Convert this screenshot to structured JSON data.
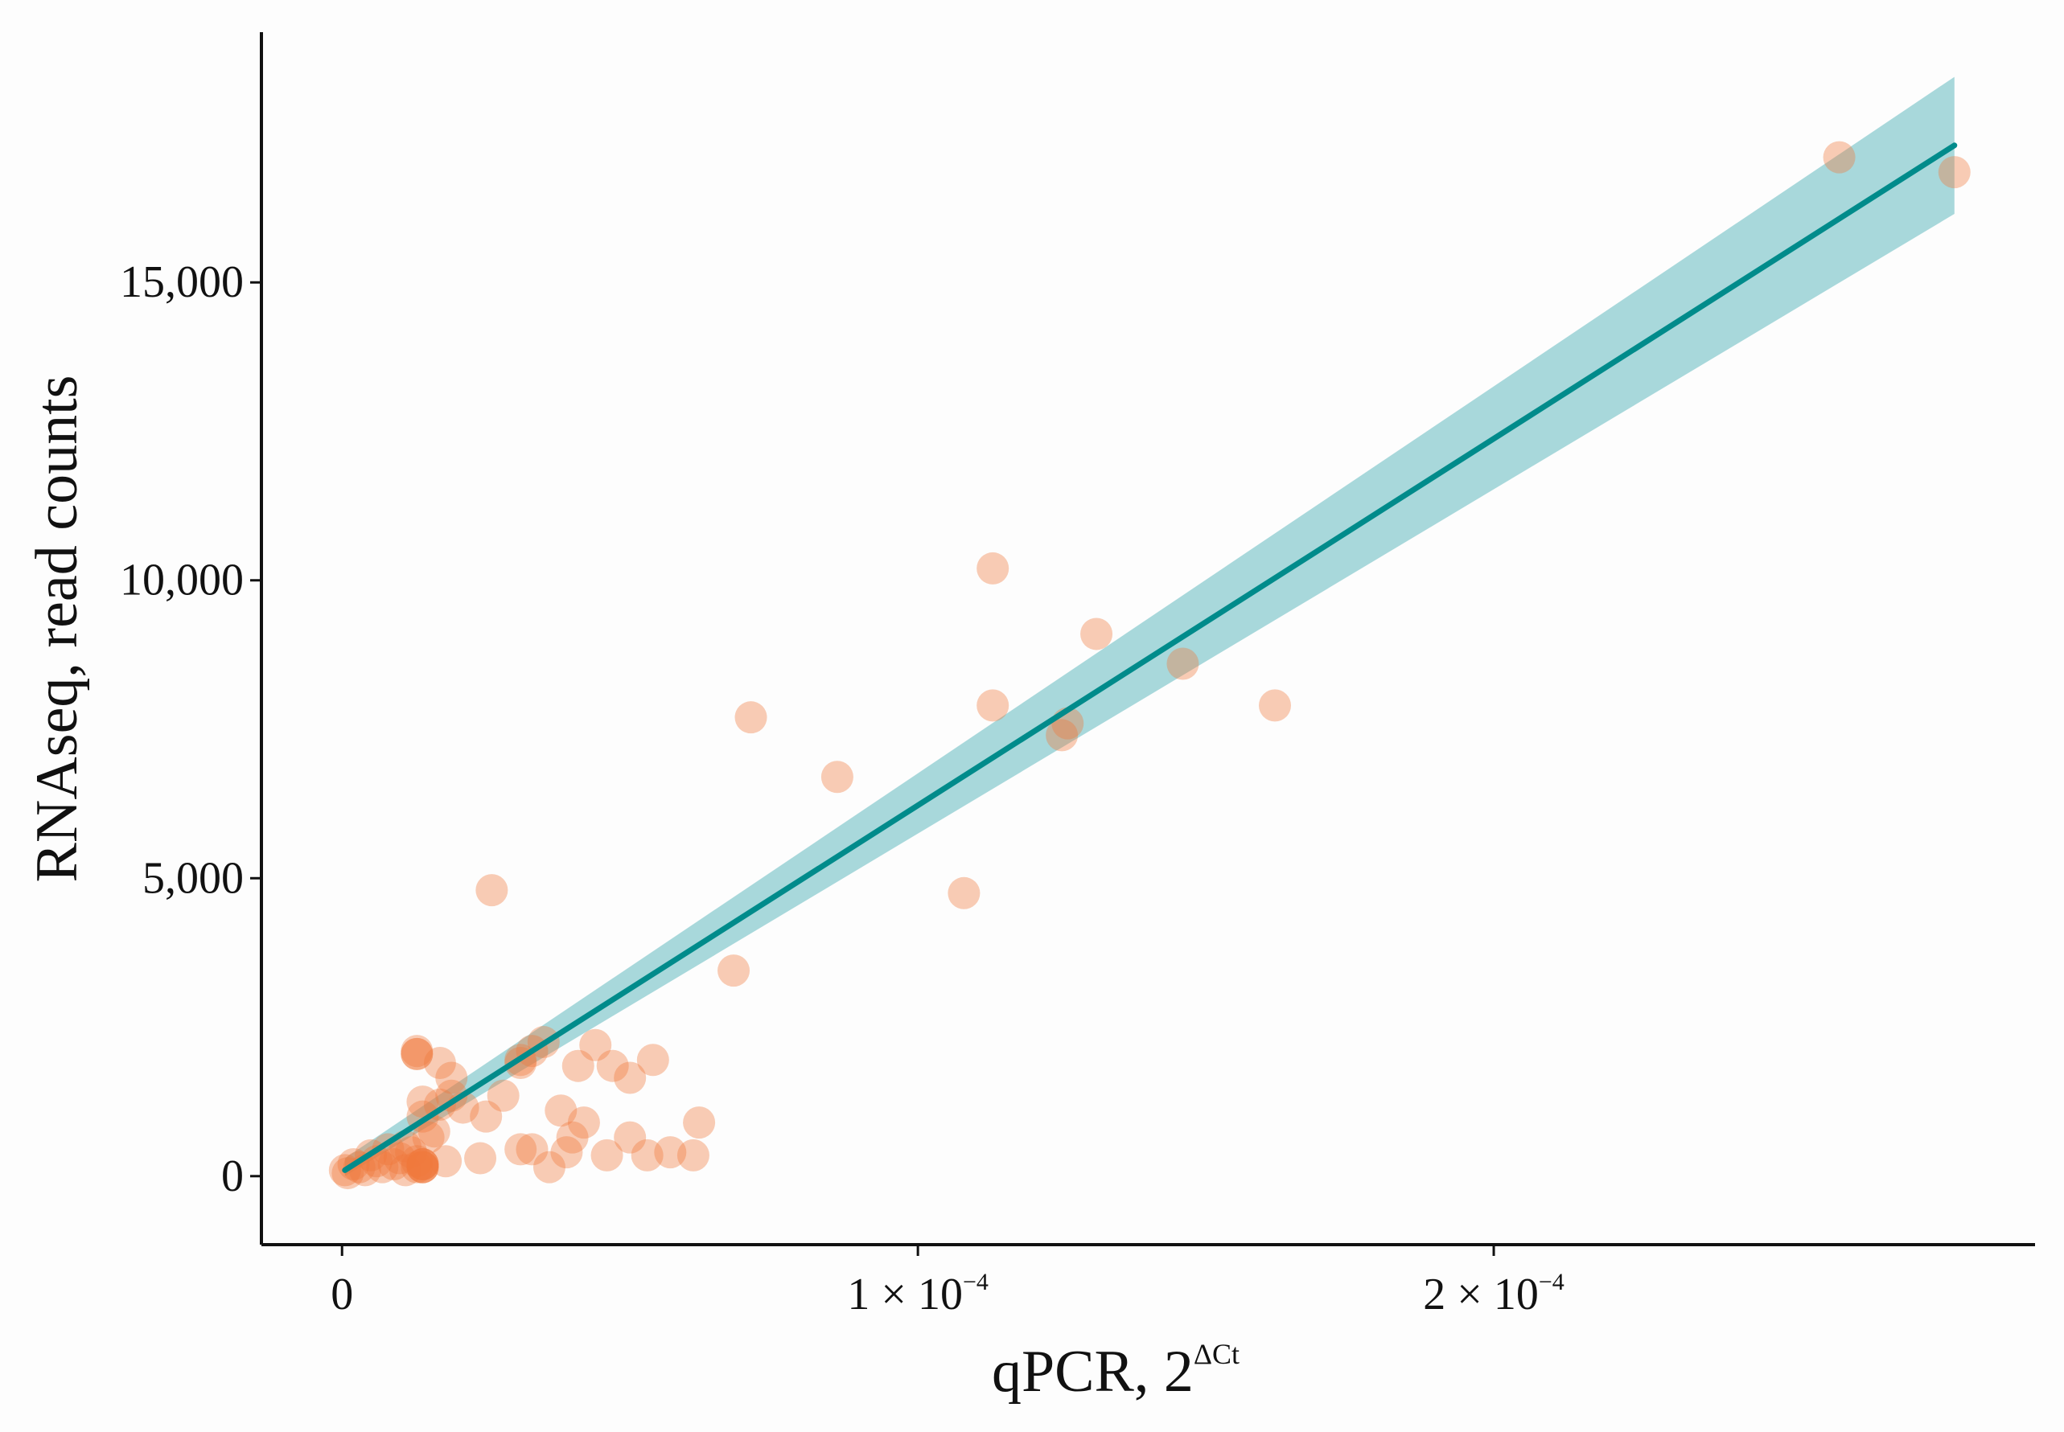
{
  "chart_data": {
    "type": "scatter",
    "title": "",
    "xlabel": "qPCR, 2",
    "xlabel_superscript": "ΔCt",
    "ylabel": "RNAseq, read counts",
    "xlim": [
      -1.4e-05,
      0.000294
    ],
    "ylim": [
      -1150,
      19200
    ],
    "x_ticks": [
      {
        "value": 0,
        "label": "0"
      },
      {
        "value": 0.0001,
        "label": "1 × 10",
        "exp": "−4"
      },
      {
        "value": 0.0002,
        "label": "2 × 10",
        "exp": "−4"
      }
    ],
    "y_ticks": [
      {
        "value": 0,
        "label": "0"
      },
      {
        "value": 5000,
        "label": "5,000"
      },
      {
        "value": 10000,
        "label": "10,000"
      },
      {
        "value": 15000,
        "label": "15,000"
      }
    ],
    "grid": false,
    "point_color": "#fbb590",
    "point_dark_color": "#f07a3c",
    "line_color": "#008b8b",
    "band_color": "#6fc0c4",
    "fit": {
      "x": [
        5e-07,
        0.00028
      ],
      "y": [
        100,
        17300
      ],
      "ci_lower": [
        0,
        16150
      ],
      "ci_upper": [
        300,
        18450
      ]
    },
    "points": [
      [
        5e-07,
        100
      ],
      [
        1e-06,
        50
      ],
      [
        2e-06,
        200
      ],
      [
        3e-06,
        150
      ],
      [
        4e-06,
        100
      ],
      [
        5e-06,
        350
      ],
      [
        6e-06,
        250
      ],
      [
        7e-06,
        150
      ],
      [
        8e-06,
        450
      ],
      [
        9e-06,
        200
      ],
      [
        1e-05,
        300
      ],
      [
        1.1e-05,
        500
      ],
      [
        1.2e-05,
        400
      ],
      [
        1.3e-05,
        250
      ],
      [
        1.5e-05,
        650
      ],
      [
        1.6e-05,
        750
      ],
      [
        1.4e-05,
        1000
      ],
      [
        1.4e-05,
        1250
      ],
      [
        1.7e-05,
        1200
      ],
      [
        1.9e-05,
        1350
      ],
      [
        2.1e-05,
        1150
      ],
      [
        2.4e-05,
        300
      ],
      [
        1.8e-05,
        250
      ],
      [
        2.5e-05,
        1000
      ],
      [
        2.8e-05,
        1350
      ],
      [
        1.3e-05,
        150
      ],
      [
        1.4e-05,
        150
      ],
      [
        1.3e-05,
        2050
      ],
      [
        1.4e-05,
        200
      ],
      [
        1.1e-05,
        100
      ],
      [
        1.4e-05,
        200
      ],
      [
        1.3e-05,
        2100
      ],
      [
        1.4e-05,
        200
      ],
      [
        1.3e-05,
        2050
      ],
      [
        1.4e-05,
        150
      ],
      [
        1.4e-05,
        150
      ],
      [
        3.3e-05,
        2100
      ],
      [
        3.5e-05,
        2250
      ],
      [
        4.1e-05,
        1850
      ],
      [
        4.4e-05,
        2200
      ],
      [
        4.7e-05,
        1850
      ],
      [
        5e-05,
        1650
      ],
      [
        5.4e-05,
        1950
      ],
      [
        3.1e-05,
        1900
      ],
      [
        3.6e-05,
        150
      ],
      [
        3.8e-05,
        1100
      ],
      [
        4.2e-05,
        900
      ],
      [
        4.6e-05,
        350
      ],
      [
        5e-05,
        650
      ],
      [
        5.3e-05,
        350
      ],
      [
        5.7e-05,
        400
      ],
      [
        6.1e-05,
        350
      ],
      [
        2.6e-05,
        4800
      ],
      [
        3.1e-05,
        1950
      ],
      [
        3.9e-05,
        400
      ],
      [
        1.7e-05,
        1900
      ],
      [
        1.9e-05,
        1650
      ],
      [
        3.1e-05,
        450
      ],
      [
        3.3e-05,
        450
      ],
      [
        4e-05,
        650
      ],
      [
        6.2e-05,
        900
      ],
      [
        6.8e-05,
        3450
      ],
      [
        7.1e-05,
        7700
      ],
      [
        8.6e-05,
        6700
      ],
      [
        0.000108,
        4750
      ],
      [
        0.000113,
        10200
      ],
      [
        0.000113,
        7900
      ],
      [
        0.000126,
        7600
      ],
      [
        0.000125,
        7400
      ],
      [
        0.000131,
        9100
      ],
      [
        0.000146,
        8600
      ],
      [
        0.000162,
        7900
      ],
      [
        0.00026,
        17100
      ],
      [
        0.00028,
        16850
      ]
    ]
  }
}
